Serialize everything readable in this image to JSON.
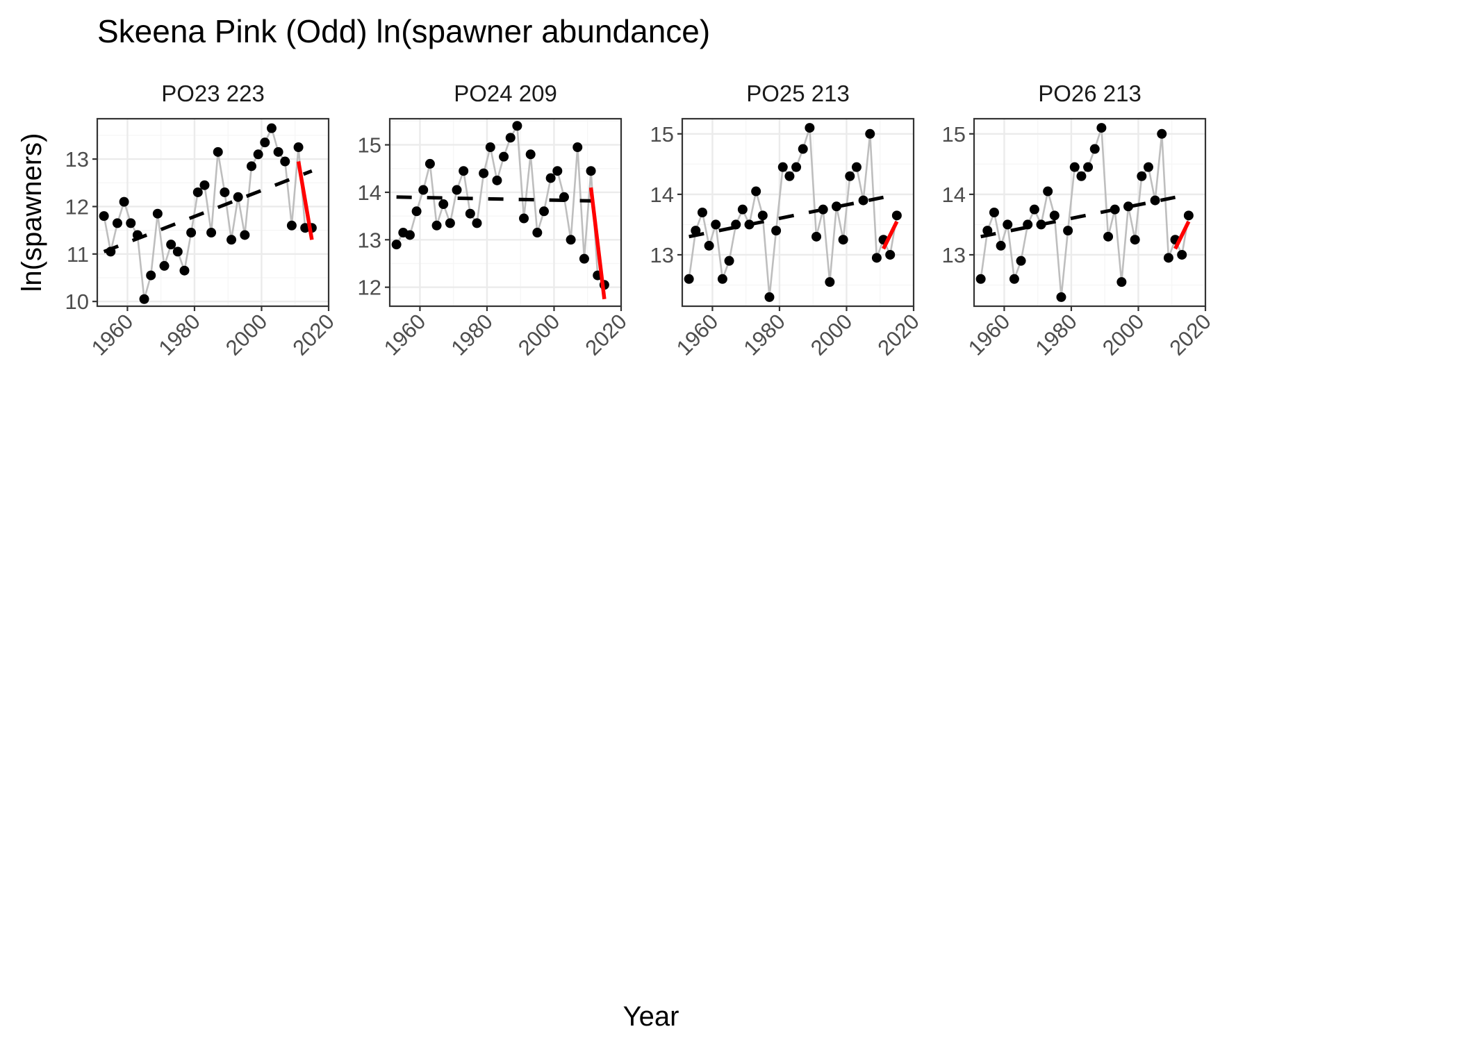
{
  "chart_data": {
    "type": "line",
    "title": "Skeena Pink (Odd) ln(spawner abundance)",
    "xlabel": "Year",
    "ylabel": "ln(spawners)",
    "x_ticks": [
      1960,
      1980,
      2000,
      2020
    ],
    "xlim": [
      1951,
      2020
    ],
    "grid": true,
    "colors": {
      "series_line": "#bebebe",
      "points": "#000000",
      "trend_dashed": "#000000",
      "recent_trend": "#ff0000",
      "panel_border": "#333333",
      "grid_major": "#ebebeb",
      "grid_minor": "#f5f5f5",
      "strip_text": "#1a1a1a",
      "tick_text": "#4d4d4d"
    },
    "panels": [
      {
        "name": "PO23 223",
        "ylim": [
          9.9,
          13.85
        ],
        "y_ticks": [
          10,
          11,
          12,
          13
        ],
        "x": [
          1953,
          1955,
          1957,
          1959,
          1961,
          1963,
          1965,
          1967,
          1969,
          1971,
          1973,
          1975,
          1977,
          1979,
          1981,
          1983,
          1985,
          1987,
          1989,
          1991,
          1993,
          1995,
          1997,
          1999,
          2001,
          2003,
          2005,
          2007,
          2009,
          2011,
          2013,
          2015
        ],
        "y": [
          11.8,
          11.05,
          11.65,
          12.1,
          11.65,
          11.4,
          10.05,
          10.55,
          11.85,
          10.75,
          11.2,
          11.05,
          10.65,
          11.45,
          12.3,
          12.45,
          11.45,
          13.15,
          12.3,
          11.3,
          12.2,
          11.4,
          12.85,
          13.1,
          13.35,
          13.65,
          13.15,
          12.95,
          11.6,
          13.25,
          11.55,
          11.55
        ],
        "trend": [
          [
            1953,
            11.05
          ],
          [
            2015,
            12.75
          ]
        ],
        "recent": [
          [
            2011,
            12.95
          ],
          [
            2015,
            11.3
          ]
        ]
      },
      {
        "name": "PO24 209",
        "ylim": [
          11.6,
          15.55
        ],
        "y_ticks": [
          12,
          13,
          14,
          15
        ],
        "x": [
          1953,
          1955,
          1957,
          1959,
          1961,
          1963,
          1965,
          1967,
          1969,
          1971,
          1973,
          1975,
          1977,
          1979,
          1981,
          1983,
          1985,
          1987,
          1989,
          1991,
          1993,
          1995,
          1997,
          1999,
          2001,
          2003,
          2005,
          2007,
          2009,
          2011,
          2013,
          2015
        ],
        "y": [
          12.9,
          13.15,
          13.1,
          13.6,
          14.05,
          14.6,
          13.3,
          13.75,
          13.35,
          14.05,
          14.45,
          13.55,
          13.35,
          14.4,
          14.95,
          14.25,
          14.75,
          15.15,
          15.4,
          13.45,
          14.8,
          13.15,
          13.6,
          14.3,
          14.45,
          13.9,
          13.0,
          14.95,
          12.6,
          14.45,
          12.25,
          12.05
        ],
        "trend": [
          [
            1953,
            13.9
          ],
          [
            2011,
            13.82
          ]
        ],
        "recent": [
          [
            2011,
            14.1
          ],
          [
            2015,
            11.75
          ]
        ]
      },
      {
        "name": "PO25 213",
        "ylim": [
          12.15,
          15.25
        ],
        "y_ticks": [
          13,
          14,
          15
        ],
        "x": [
          1953,
          1955,
          1957,
          1959,
          1961,
          1963,
          1965,
          1967,
          1969,
          1971,
          1973,
          1975,
          1977,
          1979,
          1981,
          1983,
          1985,
          1987,
          1989,
          1991,
          1993,
          1995,
          1997,
          1999,
          2001,
          2003,
          2005,
          2007,
          2009,
          2011,
          2013,
          2015
        ],
        "y": [
          12.6,
          13.4,
          13.7,
          13.15,
          13.5,
          12.6,
          12.9,
          13.5,
          13.75,
          13.5,
          14.05,
          13.65,
          12.3,
          13.4,
          14.45,
          14.3,
          14.45,
          14.75,
          15.1,
          13.3,
          13.75,
          12.55,
          13.8,
          13.25,
          14.3,
          14.45,
          13.9,
          15.0,
          12.95,
          13.25,
          13.0,
          13.65
        ],
        "trend": [
          [
            1953,
            13.3
          ],
          [
            2011,
            13.95
          ]
        ],
        "recent": [
          [
            2011,
            13.1
          ],
          [
            2015,
            13.55
          ]
        ]
      },
      {
        "name": "PO26 213",
        "ylim": [
          12.15,
          15.25
        ],
        "y_ticks": [
          13,
          14,
          15
        ],
        "x": [
          1953,
          1955,
          1957,
          1959,
          1961,
          1963,
          1965,
          1967,
          1969,
          1971,
          1973,
          1975,
          1977,
          1979,
          1981,
          1983,
          1985,
          1987,
          1989,
          1991,
          1993,
          1995,
          1997,
          1999,
          2001,
          2003,
          2005,
          2007,
          2009,
          2011,
          2013,
          2015
        ],
        "y": [
          12.6,
          13.4,
          13.7,
          13.15,
          13.5,
          12.6,
          12.9,
          13.5,
          13.75,
          13.5,
          14.05,
          13.65,
          12.3,
          13.4,
          14.45,
          14.3,
          14.45,
          14.75,
          15.1,
          13.3,
          13.75,
          12.55,
          13.8,
          13.25,
          14.3,
          14.45,
          13.9,
          15.0,
          12.95,
          13.25,
          13.0,
          13.65
        ],
        "trend": [
          [
            1953,
            13.3
          ],
          [
            2011,
            13.95
          ]
        ],
        "recent": [
          [
            2011,
            13.1
          ],
          [
            2015,
            13.55
          ]
        ]
      }
    ]
  }
}
